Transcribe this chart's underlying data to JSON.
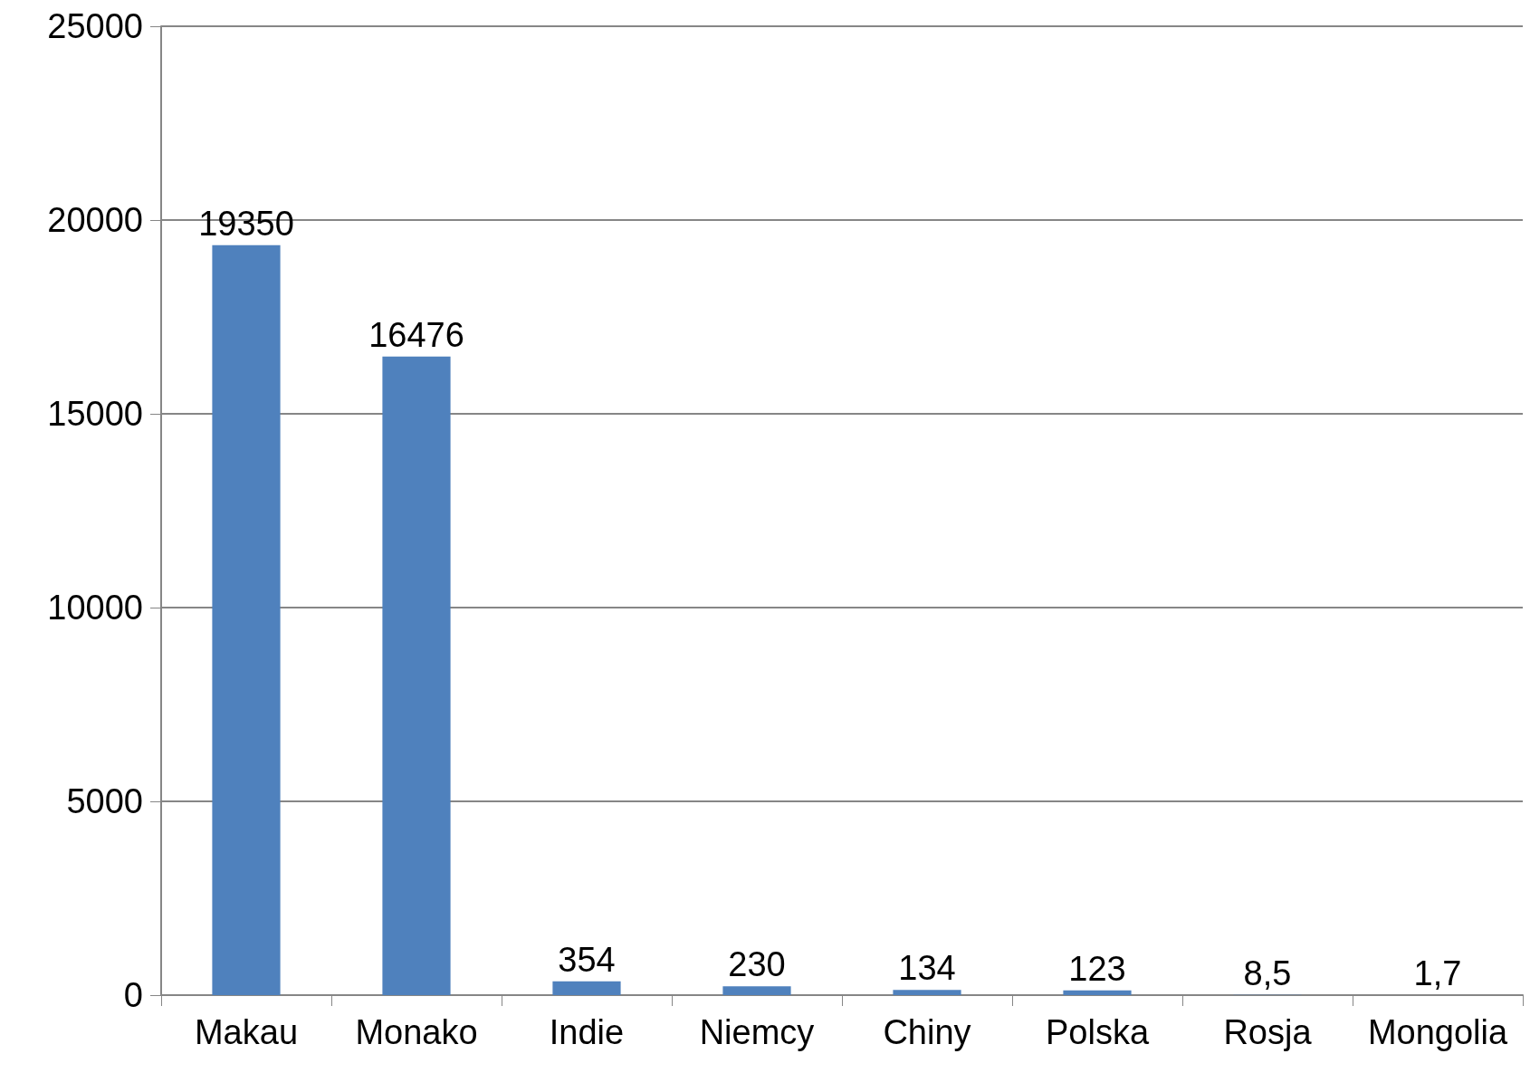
{
  "chart_data": {
    "type": "bar",
    "categories": [
      "Makau",
      "Monako",
      "Indie",
      "Niemcy",
      "Chiny",
      "Polska",
      "Rosja",
      "Mongolia"
    ],
    "values": [
      19350,
      16476,
      354,
      230,
      134,
      123,
      8.5,
      1.7
    ],
    "value_labels": [
      "19350",
      "16476",
      "354",
      "230",
      "134",
      "123",
      "8,5",
      "1,7"
    ],
    "color": "#4f81bd",
    "ylim": [
      0,
      25000
    ],
    "yticks": [
      0,
      5000,
      10000,
      15000,
      20000,
      25000
    ],
    "grid": "y"
  }
}
